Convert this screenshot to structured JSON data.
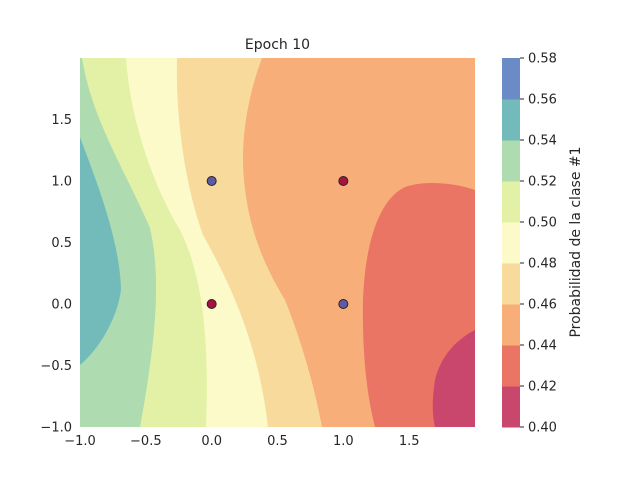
{
  "chart_data": {
    "type": "contour",
    "title": "Epoch 10",
    "xlabel": "",
    "ylabel": "",
    "xlim": [
      -1.0,
      2.0
    ],
    "ylim": [
      -1.0,
      2.0
    ],
    "x_ticks": [
      -1.0,
      -0.5,
      0.0,
      0.5,
      1.0,
      1.5
    ],
    "x_tick_labels": [
      "−1.0",
      "−0.5",
      "0.0",
      "0.5",
      "1.0",
      "1.5"
    ],
    "y_ticks": [
      -1.0,
      -0.5,
      0.0,
      0.5,
      1.0,
      1.5
    ],
    "y_tick_labels": [
      "−1.0",
      "−0.5",
      "0.0",
      "0.5",
      "1.0",
      "1.5"
    ],
    "colorbar": {
      "label": "Probabilidad de la clase #1",
      "levels": [
        0.4,
        0.42,
        0.44,
        0.46,
        0.48,
        0.5,
        0.52,
        0.54,
        0.56,
        0.58
      ],
      "tick_labels": [
        "0.40",
        "0.42",
        "0.44",
        "0.46",
        "0.48",
        "0.50",
        "0.52",
        "0.54",
        "0.56",
        "0.58"
      ],
      "colors": [
        "#c9476c",
        "#ea7565",
        "#f7ae79",
        "#f8db9c",
        "#fcfac9",
        "#e3f1a7",
        "#aedcb0",
        "#73bbba",
        "#6b8bc6"
      ]
    },
    "points": [
      {
        "x": 0,
        "y": 1,
        "class": 0,
        "color": "#5e5aa6"
      },
      {
        "x": 1,
        "y": 1,
        "class": 1,
        "color": "#a8123e"
      },
      {
        "x": 0,
        "y": 0,
        "class": 1,
        "color": "#a8123e"
      },
      {
        "x": 1,
        "y": 0,
        "class": 0,
        "color": "#5e5aa6"
      }
    ]
  }
}
